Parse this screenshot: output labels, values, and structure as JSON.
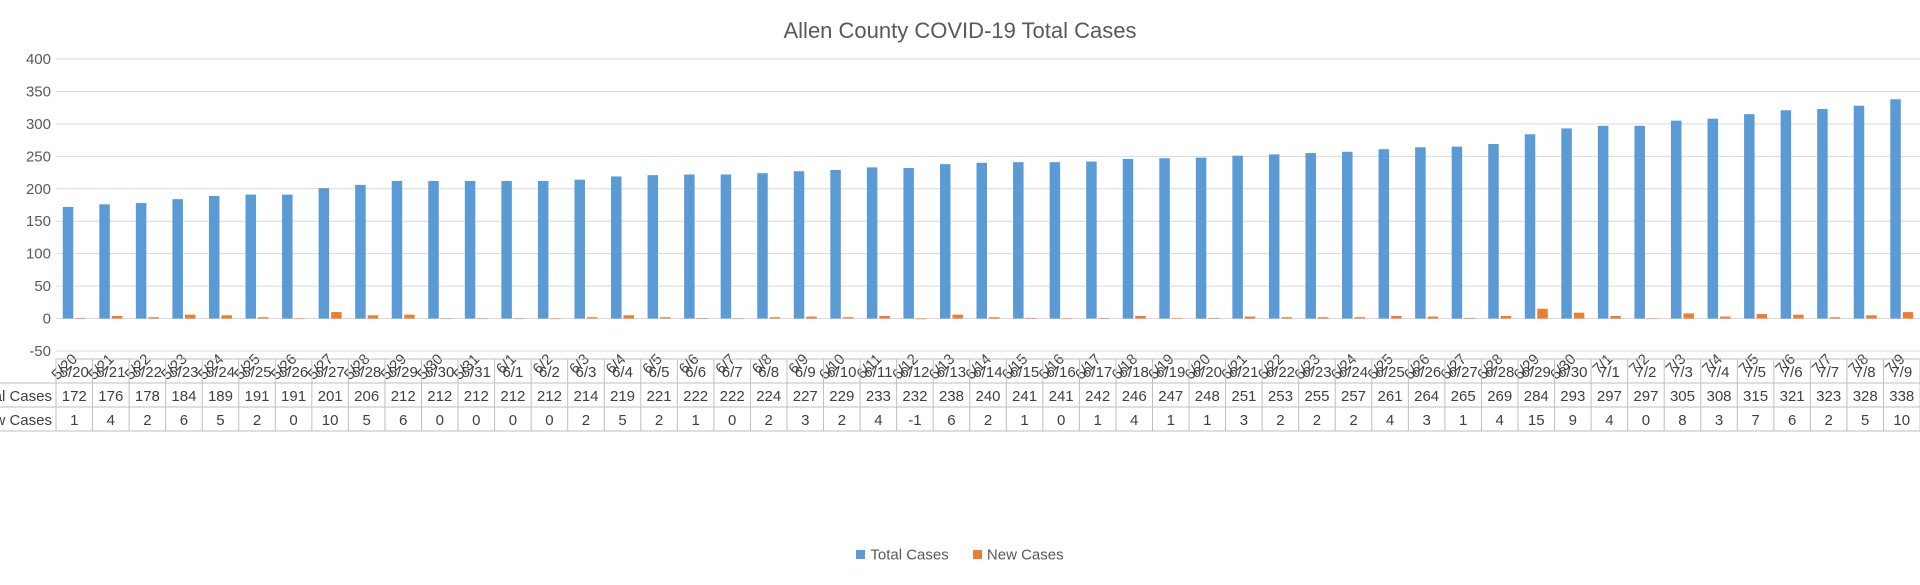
{
  "chart_data": {
    "type": "bar",
    "title": "Allen County COVID-19 Total Cases",
    "xlabel": "",
    "ylabel": "",
    "ylim": [
      -50,
      400
    ],
    "yticks": [
      -50,
      0,
      50,
      100,
      150,
      200,
      250,
      300,
      350,
      400
    ],
    "grid": true,
    "legend_position": "bottom",
    "categories": [
      "5/20",
      "5/21",
      "5/22",
      "5/23",
      "5/24",
      "5/25",
      "5/26",
      "5/27",
      "5/28",
      "5/29",
      "5/30",
      "5/31",
      "6/1",
      "6/2",
      "6/3",
      "6/4",
      "6/5",
      "6/6",
      "6/7",
      "6/8",
      "6/9",
      "6/10",
      "6/11",
      "6/12",
      "6/13",
      "6/14",
      "6/15",
      "6/16",
      "6/17",
      "6/18",
      "6/19",
      "6/20",
      "6/21",
      "6/22",
      "6/23",
      "6/24",
      "6/25",
      "6/26",
      "6/27",
      "6/28",
      "6/29",
      "6/30",
      "7/1",
      "7/2",
      "7/3",
      "7/4",
      "7/5",
      "7/6",
      "7/7",
      "7/8",
      "7/9"
    ],
    "series": [
      {
        "name": "Total Cases",
        "color": "#5B9BD5",
        "values": [
          172,
          176,
          178,
          184,
          189,
          191,
          191,
          201,
          206,
          212,
          212,
          212,
          212,
          212,
          214,
          219,
          221,
          222,
          222,
          224,
          227,
          229,
          233,
          232,
          238,
          240,
          241,
          241,
          242,
          246,
          247,
          248,
          251,
          253,
          255,
          257,
          261,
          264,
          265,
          269,
          284,
          293,
          297,
          297,
          305,
          308,
          315,
          321,
          323,
          328,
          338
        ]
      },
      {
        "name": "New Cases",
        "color": "#ED7D31",
        "values": [
          1,
          4,
          2,
          6,
          5,
          2,
          0,
          10,
          5,
          6,
          0,
          0,
          0,
          0,
          2,
          5,
          2,
          1,
          0,
          2,
          3,
          2,
          4,
          -1,
          6,
          2,
          1,
          0,
          1,
          4,
          1,
          1,
          3,
          2,
          2,
          2,
          4,
          3,
          1,
          4,
          15,
          9,
          4,
          0,
          8,
          3,
          7,
          6,
          2,
          5,
          10
        ]
      }
    ]
  }
}
